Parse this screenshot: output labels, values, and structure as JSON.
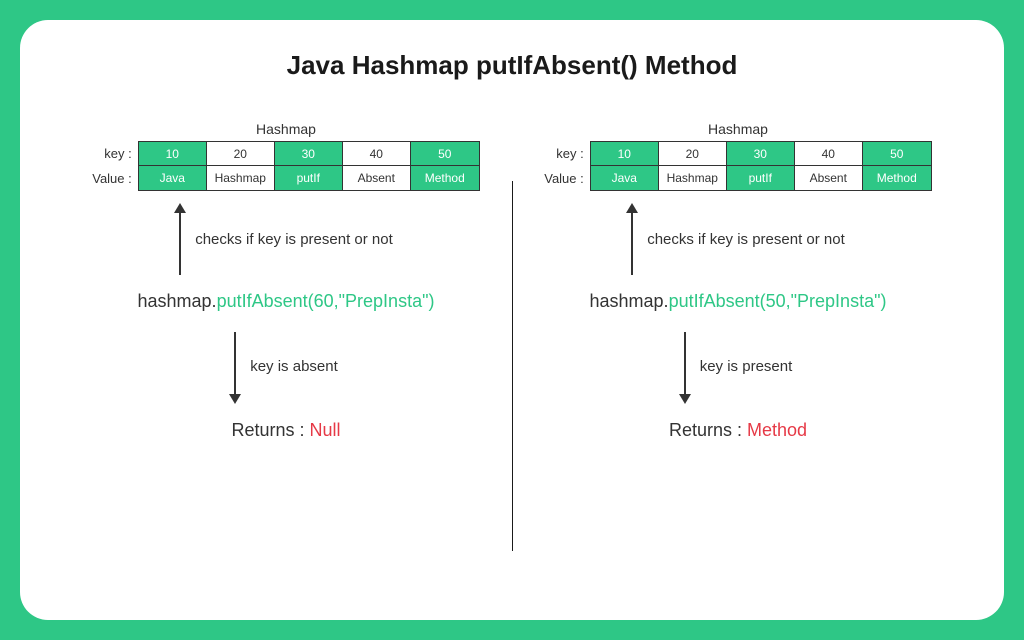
{
  "title": "Java Hashmap putIfAbsent() Method",
  "colors": {
    "background": "#2ec786",
    "card": "#ffffff",
    "text": "#1a1a1a",
    "accent": "#2ec786",
    "error": "#e63946"
  },
  "hashmap": {
    "label": "Hashmap",
    "rowLabels": {
      "key": "key :",
      "value": "Value :"
    },
    "keys": [
      "10",
      "20",
      "30",
      "40",
      "50"
    ],
    "values": [
      "Java",
      "Hashmap",
      "putIf",
      "Absent",
      "Method"
    ],
    "cellStyles": [
      "green",
      "white",
      "green",
      "white",
      "green"
    ]
  },
  "left": {
    "arrowUpText": "checks if key is present or not",
    "codePrefix": "hashmap.",
    "codeMethod": "putIfAbsent(60,\"PrepInsta\")",
    "arrowDownText": "key is absent",
    "returnsLabel": "Returns : ",
    "returnsValue": "Null"
  },
  "right": {
    "arrowUpText": "checks if key is present or not",
    "codePrefix": "hashmap.",
    "codeMethod": "putIfAbsent(50,\"PrepInsta\")",
    "arrowDownText": "key is present",
    "returnsLabel": "Returns : ",
    "returnsValue": "Method"
  }
}
